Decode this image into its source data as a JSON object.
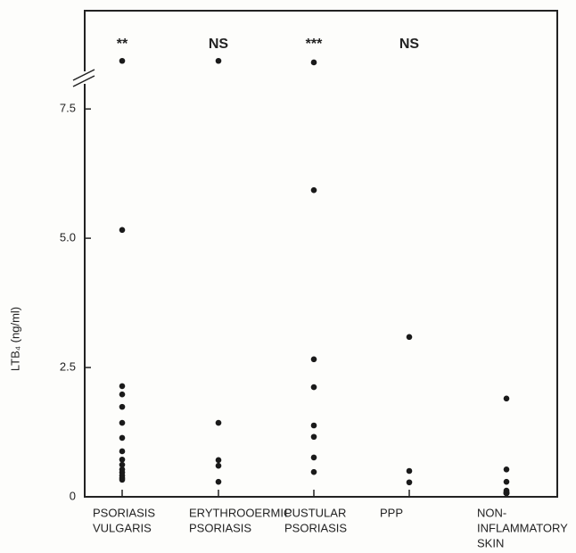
{
  "chart_data": {
    "type": "dotplot",
    "ylabel": "LTB₄ (ng/ml)",
    "categories": [
      [
        "PSORIASIS",
        "VULGARIS"
      ],
      [
        "ERYTHROOERMIC",
        "PSORIASIS"
      ],
      [
        "PUSTULAR",
        "PSORIASIS"
      ],
      [
        "PPP"
      ],
      [
        "NON-",
        "INFLAMMATORY",
        "SKIN"
      ]
    ],
    "annotations": [
      "**",
      "NS",
      "***",
      "NS",
      null
    ],
    "values": [
      [
        8.43,
        5.16,
        2.14,
        1.98,
        1.74,
        1.43,
        1.14,
        0.88,
        0.72,
        0.62,
        0.53,
        0.47,
        0.41,
        0.36,
        0.33
      ],
      [
        8.43,
        1.43,
        0.71,
        0.6,
        0.29
      ],
      [
        8.4,
        5.93,
        2.66,
        2.12,
        1.38,
        1.16,
        0.76,
        0.48
      ],
      [
        3.09,
        0.5,
        0.28
      ],
      [
        1.9,
        0.53,
        0.29,
        0.12,
        0.09,
        0.07,
        0.07,
        0.07,
        0.09,
        0.07
      ]
    ],
    "color": "#1a1a1a",
    "ylim": [
      0,
      9.4
    ],
    "yticks": [
      0,
      2.5,
      {
        "value": 5,
        "label": "5.0"
      },
      7.5
    ]
  }
}
